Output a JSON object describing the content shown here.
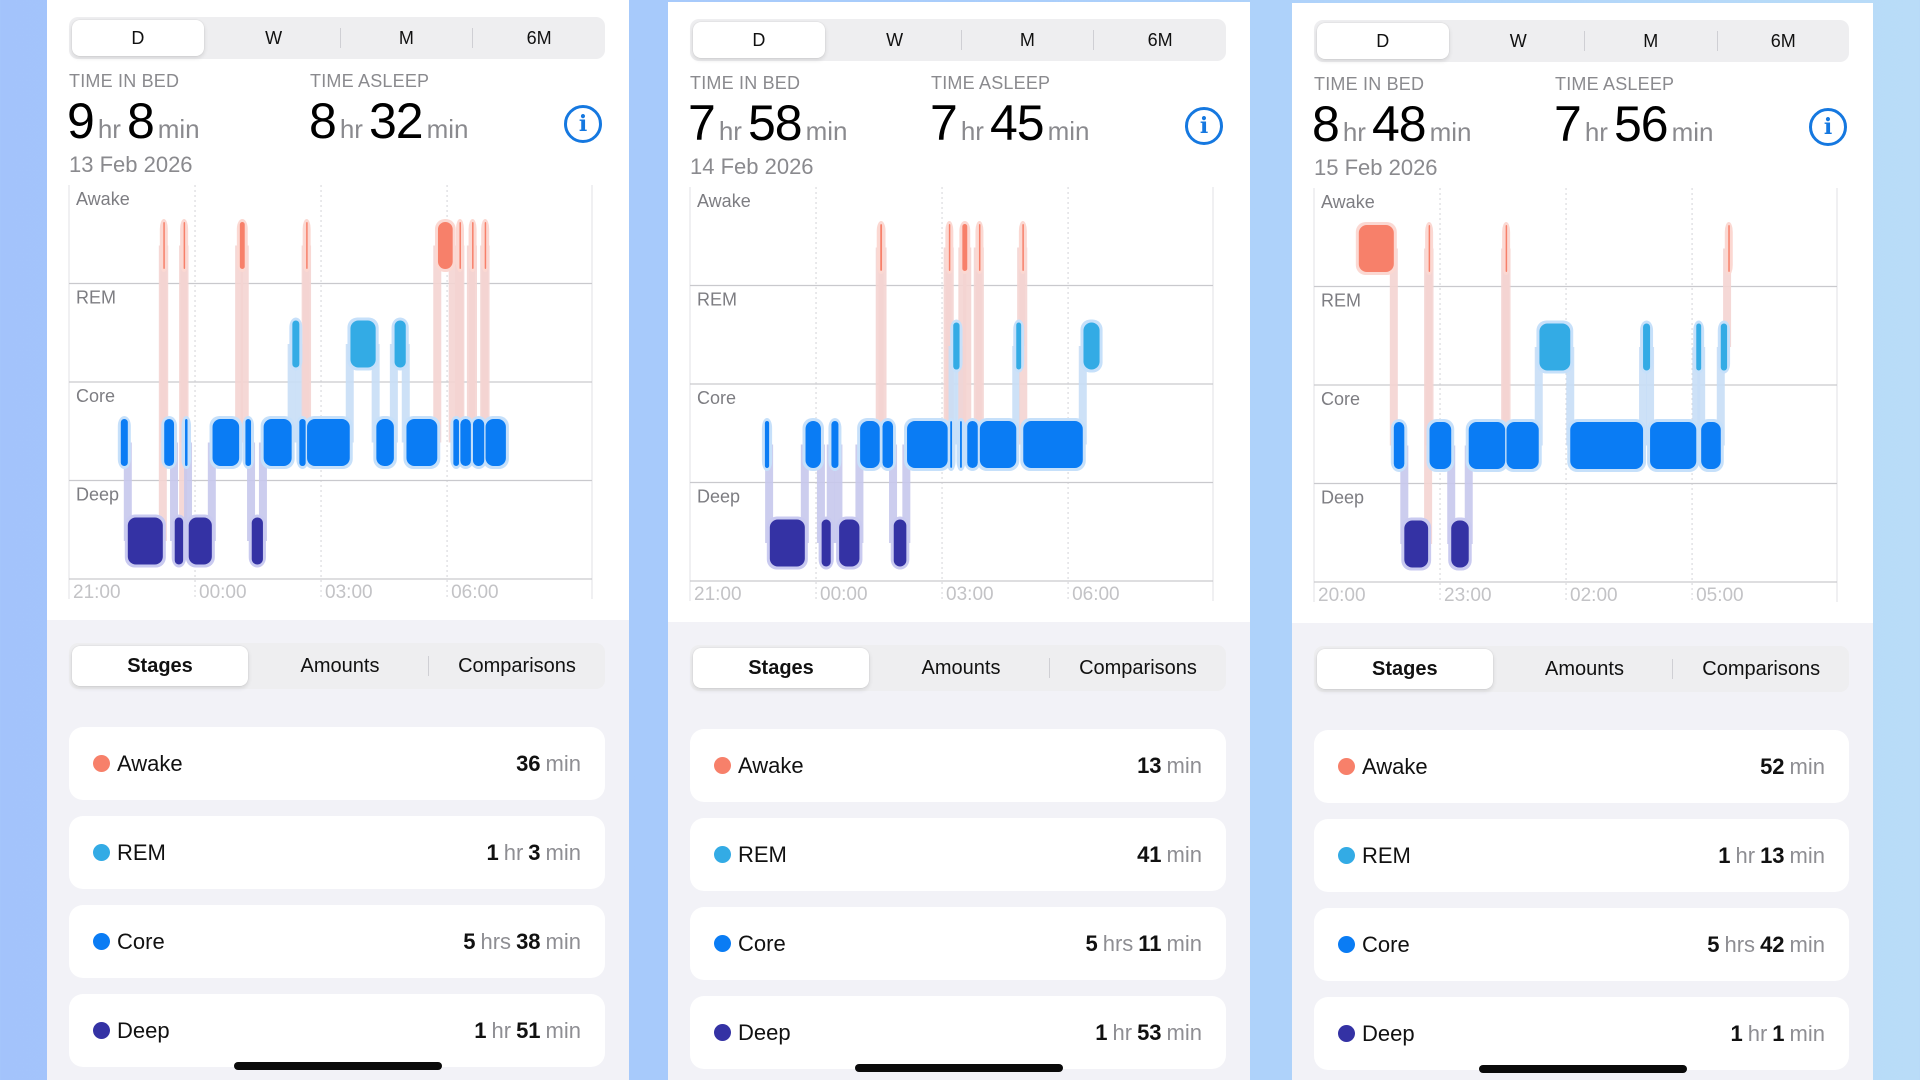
{
  "colors": {
    "awake": "#f7806a",
    "rem": "#33abe5",
    "core": "#0a7cf4",
    "deep": "#3432a4",
    "info": "#1578e0"
  },
  "panels": [
    {
      "range_tabs": [
        "D",
        "W",
        "M",
        "6M"
      ],
      "range_selected": "D",
      "time_in_bed_label": "TIME IN BED",
      "time_in_bed": {
        "hr": "9",
        "hr_unit": "hr",
        "min": "8",
        "min_unit": "min"
      },
      "time_asleep_label": "TIME ASLEEP",
      "time_asleep": {
        "hr": "8",
        "hr_unit": "hr",
        "min": "32",
        "min_unit": "min"
      },
      "date": "13 Feb 2026",
      "view_tabs": [
        "Stages",
        "Amounts",
        "Comparisons"
      ],
      "view_selected": "Stages",
      "stages": [
        {
          "name": "Awake",
          "key": "awake",
          "parts": [
            {
              "n": "36",
              "u": "min"
            }
          ]
        },
        {
          "name": "REM",
          "key": "rem",
          "parts": [
            {
              "n": "1",
              "u": "hr"
            },
            {
              "n": "3",
              "u": "min"
            }
          ]
        },
        {
          "name": "Core",
          "key": "core",
          "parts": [
            {
              "n": "5",
              "u": "hrs"
            },
            {
              "n": "38",
              "u": "min"
            }
          ]
        },
        {
          "name": "Deep",
          "key": "deep",
          "parts": [
            {
              "n": "1",
              "u": "hr"
            },
            {
              "n": "51",
              "u": "min"
            }
          ]
        }
      ]
    },
    {
      "range_tabs": [
        "D",
        "W",
        "M",
        "6M"
      ],
      "range_selected": "D",
      "time_in_bed_label": "TIME IN BED",
      "time_in_bed": {
        "hr": "7",
        "hr_unit": "hr",
        "min": "58",
        "min_unit": "min"
      },
      "time_asleep_label": "TIME ASLEEP",
      "time_asleep": {
        "hr": "7",
        "hr_unit": "hr",
        "min": "45",
        "min_unit": "min"
      },
      "date": "14 Feb 2026",
      "view_tabs": [
        "Stages",
        "Amounts",
        "Comparisons"
      ],
      "view_selected": "Stages",
      "stages": [
        {
          "name": "Awake",
          "key": "awake",
          "parts": [
            {
              "n": "13",
              "u": "min"
            }
          ]
        },
        {
          "name": "REM",
          "key": "rem",
          "parts": [
            {
              "n": "41",
              "u": "min"
            }
          ]
        },
        {
          "name": "Core",
          "key": "core",
          "parts": [
            {
              "n": "5",
              "u": "hrs"
            },
            {
              "n": "11",
              "u": "min"
            }
          ]
        },
        {
          "name": "Deep",
          "key": "deep",
          "parts": [
            {
              "n": "1",
              "u": "hr"
            },
            {
              "n": "53",
              "u": "min"
            }
          ]
        }
      ]
    },
    {
      "range_tabs": [
        "D",
        "W",
        "M",
        "6M"
      ],
      "range_selected": "D",
      "time_in_bed_label": "TIME IN BED",
      "time_in_bed": {
        "hr": "8",
        "hr_unit": "hr",
        "min": "48",
        "min_unit": "min"
      },
      "time_asleep_label": "TIME ASLEEP",
      "time_asleep": {
        "hr": "7",
        "hr_unit": "hr",
        "min": "56",
        "min_unit": "min"
      },
      "date": "15 Feb 2026",
      "view_tabs": [
        "Stages",
        "Amounts",
        "Comparisons"
      ],
      "view_selected": "Stages",
      "stages": [
        {
          "name": "Awake",
          "key": "awake",
          "parts": [
            {
              "n": "52",
              "u": "min"
            }
          ]
        },
        {
          "name": "REM",
          "key": "rem",
          "parts": [
            {
              "n": "1",
              "u": "hr"
            },
            {
              "n": "13",
              "u": "min"
            }
          ]
        },
        {
          "name": "Core",
          "key": "core",
          "parts": [
            {
              "n": "5",
              "u": "hrs"
            },
            {
              "n": "42",
              "u": "min"
            }
          ]
        },
        {
          "name": "Deep",
          "key": "deep",
          "parts": [
            {
              "n": "1",
              "u": "hr"
            },
            {
              "n": "1",
              "u": "min"
            }
          ]
        }
      ]
    }
  ],
  "chart_data": [
    {
      "type": "timeline",
      "title": "Sleep stages 13 Feb 2026",
      "rows": [
        "Awake",
        "REM",
        "Core",
        "Deep"
      ],
      "x_ticks": [
        "21:00",
        "00:00",
        "03:00",
        "06:00"
      ],
      "x_start": "21:00",
      "span_min": 747,
      "segments": [
        [
          "core",
          74,
          84
        ],
        [
          "deep",
          84,
          134
        ],
        [
          "awake",
          134,
          136
        ],
        [
          "core",
          136,
          150
        ],
        [
          "deep",
          151,
          163
        ],
        [
          "awake",
          163,
          165
        ],
        [
          "core",
          165,
          170
        ],
        [
          "deep",
          171,
          204
        ],
        [
          "core",
          205,
          243
        ],
        [
          "awake",
          244,
          251
        ],
        [
          "core",
          252,
          260
        ],
        [
          "deep",
          261,
          277
        ],
        [
          "core",
          278,
          318
        ],
        [
          "rem",
          319,
          329
        ],
        [
          "core",
          329,
          338
        ],
        [
          "awake",
          338,
          340
        ],
        [
          "core",
          340,
          401
        ],
        [
          "rem",
          402,
          438
        ],
        [
          "core",
          439,
          464
        ],
        [
          "rem",
          465,
          481
        ],
        [
          "core",
          482,
          526
        ],
        [
          "awake",
          527,
          548
        ],
        [
          "core",
          549,
          557
        ],
        [
          "awake",
          557,
          559
        ],
        [
          "core",
          559,
          574
        ],
        [
          "awake",
          575,
          577
        ],
        [
          "core",
          577,
          593
        ],
        [
          "awake",
          593,
          595
        ],
        [
          "core",
          595,
          624
        ]
      ],
      "totals": {
        "Awake": "36 min",
        "REM": "1 hr 3 min",
        "Core": "5 hrs 38 min",
        "Deep": "1 hr 51 min"
      }
    },
    {
      "type": "timeline",
      "title": "Sleep stages 14 Feb 2026",
      "rows": [
        "Awake",
        "REM",
        "Core",
        "Deep"
      ],
      "x_ticks": [
        "21:00",
        "00:00",
        "03:00",
        "06:00"
      ],
      "x_start": "21:00",
      "span_min": 747,
      "segments": [
        [
          "core",
          107,
          113
        ],
        [
          "deep",
          114,
          164
        ],
        [
          "core",
          165,
          187
        ],
        [
          "deep",
          188,
          201
        ],
        [
          "core",
          202,
          212
        ],
        [
          "deep",
          213,
          242
        ],
        [
          "core",
          243,
          271
        ],
        [
          "awake",
          271,
          275
        ],
        [
          "core",
          275,
          290
        ],
        [
          "deep",
          291,
          309
        ],
        [
          "core",
          310,
          368
        ],
        [
          "awake",
          369,
          371
        ],
        [
          "core",
          371,
          375
        ],
        [
          "rem",
          376,
          385
        ],
        [
          "core",
          385,
          389
        ],
        [
          "awake",
          389,
          396
        ],
        [
          "core",
          396,
          411
        ],
        [
          "awake",
          412,
          414
        ],
        [
          "core",
          414,
          466
        ],
        [
          "rem",
          466,
          473
        ],
        [
          "awake",
          474,
          476
        ],
        [
          "core",
          476,
          561
        ],
        [
          "rem",
          562,
          585
        ]
      ],
      "totals": {
        "Awake": "13 min",
        "REM": "41 min",
        "Core": "5 hrs 11 min",
        "Deep": "1 hr 53 min"
      }
    },
    {
      "type": "timeline",
      "title": "Sleep stages 15 Feb 2026",
      "rows": [
        "Awake",
        "REM",
        "Core",
        "Deep"
      ],
      "x_ticks": [
        "20:00",
        "23:00",
        "02:00",
        "05:00"
      ],
      "x_start": "20:00",
      "span_min": 747,
      "segments": [
        [
          "awake",
          64,
          114
        ],
        [
          "core",
          114,
          129
        ],
        [
          "deep",
          129,
          163
        ],
        [
          "awake",
          163,
          165
        ],
        [
          "core",
          165,
          196
        ],
        [
          "deep",
          196,
          221
        ],
        [
          "core",
          221,
          273
        ],
        [
          "awake",
          273,
          275
        ],
        [
          "core",
          275,
          321
        ],
        [
          "rem",
          322,
          366
        ],
        [
          "core",
          366,
          470
        ],
        [
          "rem",
          470,
          480
        ],
        [
          "core",
          480,
          546
        ],
        [
          "rem",
          546,
          553
        ],
        [
          "core",
          553,
          581
        ],
        [
          "rem",
          581,
          590
        ],
        [
          "awake",
          591,
          593
        ]
      ],
      "totals": {
        "Awake": "52 min",
        "REM": "1 hr 13 min",
        "Core": "5 hrs 42 min",
        "Deep": "1 hr 1 min"
      }
    }
  ]
}
